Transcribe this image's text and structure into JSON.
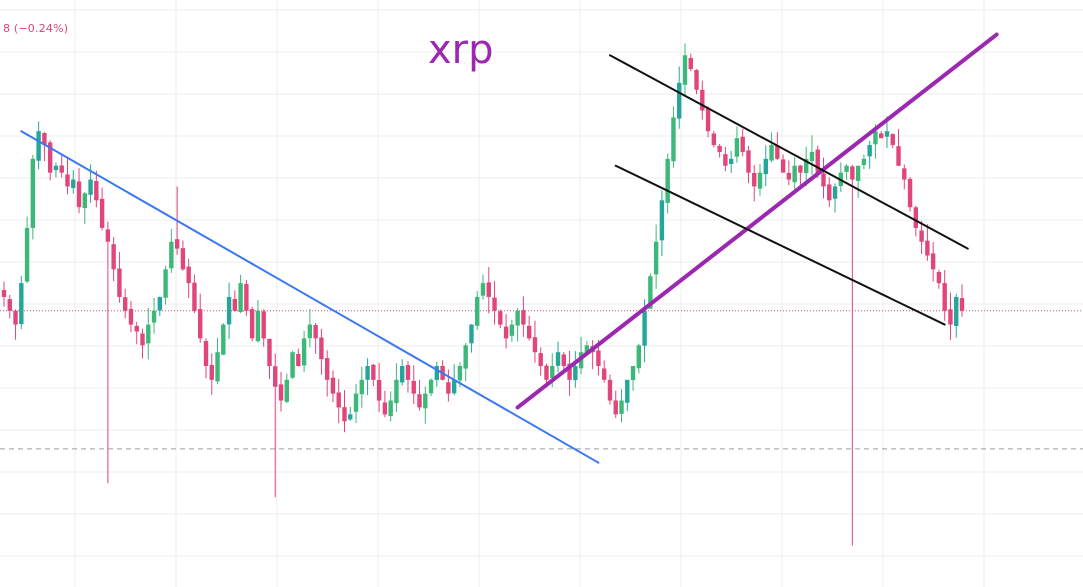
{
  "header": {
    "price_change": "8 (−0.24%)"
  },
  "chart_data": {
    "type": "candlestick",
    "title": "xrp",
    "grid": true,
    "colors": {
      "up": "#26a69a",
      "up_alt": "#3cb878",
      "down": "#e0457b",
      "blue_trendline": "#3b78f0",
      "purple_trendline": "#9c27b0",
      "channel_lines": "#111111",
      "current_price_line": "#e0457b",
      "dashed_level": "#9e9e9e",
      "grid": "#eeeeee"
    },
    "close_series": [
      0.62,
      0.6,
      0.58,
      0.64,
      0.72,
      0.82,
      0.86,
      0.84,
      0.8,
      0.81,
      0.8,
      0.78,
      0.79,
      0.75,
      0.77,
      0.79,
      0.76,
      0.72,
      0.7,
      0.66,
      0.62,
      0.6,
      0.58,
      0.57,
      0.55,
      0.58,
      0.6,
      0.62,
      0.66,
      0.7,
      0.69,
      0.66,
      0.64,
      0.6,
      0.56,
      0.52,
      0.5,
      0.54,
      0.58,
      0.62,
      0.6,
      0.64,
      0.6,
      0.56,
      0.6,
      0.56,
      0.52,
      0.49,
      0.47,
      0.5,
      0.54,
      0.52,
      0.56,
      0.58,
      0.56,
      0.53,
      0.5,
      0.48,
      0.46,
      0.44,
      0.45,
      0.48,
      0.5,
      0.52,
      0.5,
      0.47,
      0.45,
      0.47,
      0.5,
      0.52,
      0.5,
      0.48,
      0.46,
      0.48,
      0.5,
      0.52,
      0.5,
      0.48,
      0.5,
      0.52,
      0.55,
      0.58,
      0.62,
      0.64,
      0.62,
      0.6,
      0.58,
      0.56,
      0.58,
      0.6,
      0.58,
      0.56,
      0.54,
      0.52,
      0.5,
      0.52,
      0.54,
      0.52,
      0.5,
      0.52,
      0.54,
      0.55,
      0.54,
      0.52,
      0.5,
      0.47,
      0.45,
      0.47,
      0.5,
      0.52,
      0.55,
      0.6,
      0.65,
      0.7,
      0.76,
      0.82,
      0.88,
      0.93,
      0.97,
      0.95,
      0.92,
      0.89,
      0.86,
      0.84,
      0.83,
      0.81,
      0.82,
      0.85,
      0.83,
      0.8,
      0.78,
      0.8,
      0.82,
      0.84,
      0.82,
      0.8,
      0.79,
      0.81,
      0.8,
      0.82,
      0.83,
      0.8,
      0.78,
      0.76,
      0.78,
      0.8,
      0.81,
      0.79,
      0.81,
      0.82,
      0.84,
      0.86,
      0.85,
      0.86,
      0.84,
      0.81,
      0.79,
      0.75,
      0.72,
      0.7,
      0.68,
      0.66,
      0.64,
      0.6,
      0.58,
      0.62,
      0.6
    ],
    "notable_wicks": [
      {
        "index": 18,
        "low": 0.35
      },
      {
        "index": 47,
        "low": 0.33
      },
      {
        "index": 147,
        "low": 0.26
      },
      {
        "index": 30,
        "high": 0.78
      }
    ],
    "y_range": [
      0.2,
      1.05
    ],
    "current_price": 0.6,
    "support_level": 0.4,
    "trendlines": [
      {
        "name": "descending-trendline",
        "color": "blue",
        "from": {
          "index": 3,
          "value": 0.86
        },
        "to": {
          "index": 103,
          "value": 0.38
        }
      },
      {
        "name": "ascending-trendline",
        "color": "purple",
        "from": {
          "index": 89,
          "value": 0.46
        },
        "to": {
          "index": 172,
          "value": 1.0
        }
      },
      {
        "name": "channel-upper-line",
        "color": "black",
        "from": {
          "index": 105,
          "value": 0.97
        },
        "to": {
          "index": 167,
          "value": 0.69
        }
      },
      {
        "name": "channel-lower-line",
        "color": "black",
        "from": {
          "index": 106,
          "value": 0.81
        },
        "to": {
          "index": 163,
          "value": 0.58
        }
      }
    ]
  }
}
